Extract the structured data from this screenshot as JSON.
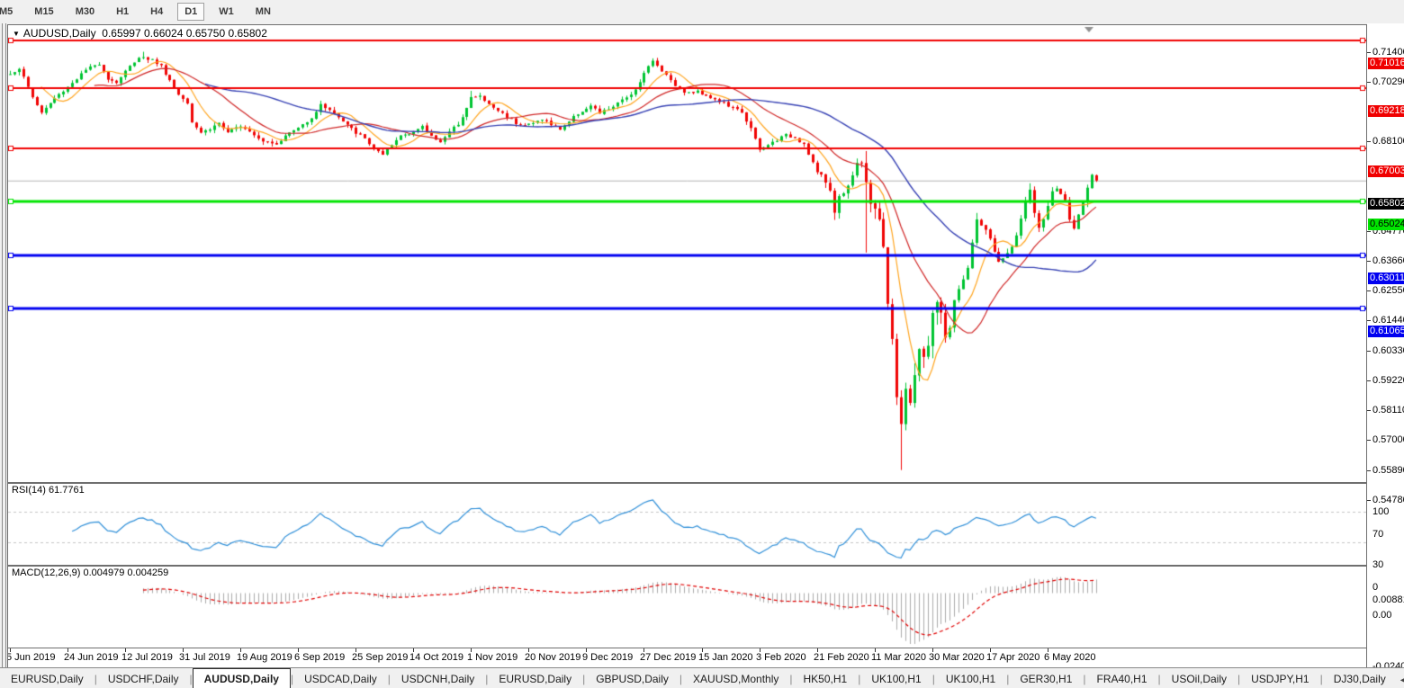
{
  "toolbar": {
    "timeframes": [
      {
        "label": "M5",
        "active": false
      },
      {
        "label": "M15",
        "active": false
      },
      {
        "label": "M30",
        "active": false
      },
      {
        "label": "H1",
        "active": false
      },
      {
        "label": "H4",
        "active": false
      },
      {
        "label": "D1",
        "active": true
      },
      {
        "label": "W1",
        "active": false
      },
      {
        "label": "MN",
        "active": false
      }
    ]
  },
  "header": {
    "dropdown_icon": "▼",
    "symbol": "AUDUSD,Daily",
    "open": "0.65997",
    "high": "0.66024",
    "low": "0.65750",
    "close": "0.65802"
  },
  "rsi_header": "RSI(14) 61.7761",
  "macd_header": "MACD(12,26,9) 0.004979 0.004259",
  "tabs": {
    "items": [
      {
        "label": "EURUSD,Daily",
        "active": false
      },
      {
        "label": "USDCHF,Daily",
        "active": false
      },
      {
        "label": "AUDUSD,Daily",
        "active": true
      },
      {
        "label": "USDCAD,Daily",
        "active": false
      },
      {
        "label": "USDCNH,Daily",
        "active": false
      },
      {
        "label": "EURUSD,Daily",
        "active": false
      },
      {
        "label": "GBPUSD,Daily",
        "active": false
      },
      {
        "label": "XAUUSD,Monthly",
        "active": false
      },
      {
        "label": "HK50,H1",
        "active": false
      },
      {
        "label": "UK100,H1",
        "active": false
      },
      {
        "label": "UK100,H1",
        "active": false
      },
      {
        "label": "GER30,H1",
        "active": false
      },
      {
        "label": "FRA40,H1",
        "active": false
      },
      {
        "label": "USOil,Daily",
        "active": false
      },
      {
        "label": "USDJPY,H1",
        "active": false
      },
      {
        "label": "DJ30,Daily",
        "active": false
      }
    ],
    "scroll_left": "◂",
    "scroll_right": "▸"
  },
  "chart_data": {
    "type": "candlestick",
    "title": "AUDUSD,Daily",
    "price_axis": {
      "min": 0.5478,
      "max": 0.714,
      "pad": 5,
      "ticks": [
        "0.71400",
        "0.70290",
        "0.68100",
        "0.64770",
        "0.63660",
        "0.62550",
        "0.61440",
        "0.60330",
        "0.59220",
        "0.58110",
        "0.57000",
        "0.55890",
        "0.54780"
      ]
    },
    "x_axis": {
      "labels": [
        "5 Jun 2019",
        "24 Jun 2019",
        "12 Jul 2019",
        "31 Jul 2019",
        "19 Aug 2019",
        "6 Sep 2019",
        "25 Sep 2019",
        "14 Oct 2019",
        "1 Nov 2019",
        "20 Nov 2019",
        "9 Dec 2019",
        "27 Dec 2019",
        "15 Jan 2020",
        "3 Feb 2020",
        "21 Feb 2020",
        "11 Mar 2020",
        "30 Mar 2020",
        "17 Apr 2020",
        "6 May 2020"
      ],
      "bars_per_label": 13
    },
    "h_lines": [
      {
        "price": 0.71016,
        "label": "0.71016",
        "color": "#f00000",
        "text_color": "#ffffff",
        "width": 2
      },
      {
        "price": 0.69218,
        "label": "0.69218",
        "color": "#f00000",
        "text_color": "#ffffff",
        "width": 2
      },
      {
        "price": 0.67003,
        "label": "0.67003",
        "color": "#f00000",
        "text_color": "#ffffff",
        "width": 2
      },
      {
        "price": 0.65024,
        "label": "0.65024",
        "color": "#00e400",
        "text_color": "#000000",
        "width": 3
      },
      {
        "price": 0.63011,
        "label": "0.63011",
        "color": "#0000f0",
        "text_color": "#ffffff",
        "width": 3
      },
      {
        "price": 0.61065,
        "label": "0.61065",
        "color": "#0000f0",
        "text_color": "#ffffff",
        "width": 3
      }
    ],
    "bid_line": {
      "price": 0.65802,
      "label": "0.65802",
      "line_color": "#b4b4b4",
      "box_color": "#000000",
      "text_color": "#ffffff"
    },
    "candles": {
      "count": 246,
      "seed": 1337,
      "bar_spacing": 4.925,
      "close_anchors": [
        [
          0,
          0.6975
        ],
        [
          2,
          0.6998
        ],
        [
          5,
          0.689
        ],
        [
          7,
          0.6832
        ],
        [
          10,
          0.6885
        ],
        [
          13,
          0.6928
        ],
        [
          17,
          0.699
        ],
        [
          20,
          0.7015
        ],
        [
          22,
          0.6958
        ],
        [
          24,
          0.6945
        ],
        [
          26,
          0.6985
        ],
        [
          29,
          0.704
        ],
        [
          32,
          0.7028
        ],
        [
          34,
          0.7005
        ],
        [
          36,
          0.6952
        ],
        [
          38,
          0.69
        ],
        [
          40,
          0.6872
        ],
        [
          41,
          0.68
        ],
        [
          43,
          0.676
        ],
        [
          45,
          0.6772
        ],
        [
          47,
          0.6795
        ],
        [
          49,
          0.6755
        ],
        [
          52,
          0.6786
        ],
        [
          54,
          0.6765
        ],
        [
          57,
          0.6728
        ],
        [
          60,
          0.6718
        ],
        [
          63,
          0.6758
        ],
        [
          65,
          0.6775
        ],
        [
          68,
          0.6815
        ],
        [
          70,
          0.686
        ],
        [
          72,
          0.6845
        ],
        [
          75,
          0.6798
        ],
        [
          78,
          0.6758
        ],
        [
          80,
          0.6735
        ],
        [
          82,
          0.67
        ],
        [
          84,
          0.6672
        ],
        [
          86,
          0.671
        ],
        [
          88,
          0.6748
        ],
        [
          91,
          0.6762
        ],
        [
          93,
          0.6778
        ],
        [
          95,
          0.6745
        ],
        [
          97,
          0.6726
        ],
        [
          99,
          0.6758
        ],
        [
          101,
          0.6792
        ],
        [
          103,
          0.685
        ],
        [
          104,
          0.6888
        ],
        [
          106,
          0.6893
        ],
        [
          108,
          0.6862
        ],
        [
          110,
          0.684
        ],
        [
          112,
          0.6818
        ],
        [
          114,
          0.6795
        ],
        [
          116,
          0.6786
        ],
        [
          118,
          0.6792
        ],
        [
          120,
          0.681
        ],
        [
          122,
          0.6786
        ],
        [
          124,
          0.6772
        ],
        [
          126,
          0.68
        ],
        [
          128,
          0.683
        ],
        [
          131,
          0.6856
        ],
        [
          133,
          0.683
        ],
        [
          135,
          0.6846
        ],
        [
          137,
          0.6865
        ],
        [
          139,
          0.689
        ],
        [
          141,
          0.6918
        ],
        [
          143,
          0.6982
        ],
        [
          145,
          0.7023
        ],
        [
          147,
          0.699
        ],
        [
          149,
          0.6955
        ],
        [
          151,
          0.6918
        ],
        [
          153,
          0.6905
        ],
        [
          155,
          0.691
        ],
        [
          157,
          0.6898
        ],
        [
          159,
          0.688
        ],
        [
          161,
          0.6866
        ],
        [
          163,
          0.6848
        ],
        [
          165,
          0.6835
        ],
        [
          167,
          0.6772
        ],
        [
          169,
          0.6692
        ],
        [
          171,
          0.6712
        ],
        [
          173,
          0.6732
        ],
        [
          175,
          0.6748
        ],
        [
          177,
          0.674
        ],
        [
          179,
          0.6716
        ],
        [
          182,
          0.6612
        ],
        [
          184,
          0.6575
        ],
        [
          185,
          0.6542
        ],
        [
          186,
          0.647
        ],
        [
          187,
          0.6515
        ],
        [
          189,
          0.6562
        ],
        [
          191,
          0.6642
        ],
        [
          192,
          0.6655
        ],
        [
          193,
          0.6582
        ],
        [
          194,
          0.6505
        ],
        [
          195,
          0.6482
        ],
        [
          196,
          0.643
        ],
        [
          197,
          0.6318
        ],
        [
          198,
          0.6125
        ],
        [
          199,
          0.6002
        ],
        [
          200,
          0.5782
        ],
        [
          201,
          0.5665
        ],
        [
          202,
          0.5808
        ],
        [
          203,
          0.5742
        ],
        [
          204,
          0.5868
        ],
        [
          205,
          0.5958
        ],
        [
          206,
          0.5918
        ],
        [
          207,
          0.5975
        ],
        [
          208,
          0.6088
        ],
        [
          209,
          0.6128
        ],
        [
          210,
          0.6078
        ],
        [
          211,
          0.6002
        ],
        [
          212,
          0.6038
        ],
        [
          213,
          0.6132
        ],
        [
          214,
          0.617
        ],
        [
          216,
          0.6252
        ],
        [
          217,
          0.6345
        ],
        [
          218,
          0.644
        ],
        [
          220,
          0.6392
        ],
        [
          221,
          0.6365
        ],
        [
          223,
          0.6272
        ],
        [
          225,
          0.6308
        ],
        [
          227,
          0.6375
        ],
        [
          229,
          0.6498
        ],
        [
          230,
          0.6548
        ],
        [
          231,
          0.6462
        ],
        [
          232,
          0.6398
        ],
        [
          233,
          0.6442
        ],
        [
          234,
          0.6482
        ],
        [
          235,
          0.6538
        ],
        [
          236,
          0.6552
        ],
        [
          237,
          0.653
        ],
        [
          238,
          0.6502
        ],
        [
          239,
          0.6442
        ],
        [
          240,
          0.6408
        ],
        [
          241,
          0.6448
        ],
        [
          242,
          0.6492
        ],
        [
          243,
          0.6552
        ],
        [
          244,
          0.6595
        ],
        [
          245,
          0.65802
        ]
      ],
      "noise_zones": [
        {
          "from": 0,
          "to": 181,
          "amp": 0.001,
          "wick": 0.0013
        },
        {
          "from": 182,
          "to": 192,
          "amp": 0.0016,
          "wick": 0.0022
        },
        {
          "from": 193,
          "to": 212,
          "amp": 0.003,
          "wick": 0.0048
        },
        {
          "from": 213,
          "to": 245,
          "amp": 0.0013,
          "wick": 0.0018
        }
      ],
      "specials": {
        "30": {
          "high": 0.7058
        },
        "104": {
          "high": 0.6913
        },
        "186": {
          "low": 0.6434
        },
        "193": {
          "low": 0.6313
        },
        "201": {
          "low": 0.5506
        },
        "218": {
          "high": 0.646
        },
        "230": {
          "high": 0.657
        },
        "236": {
          "high": 0.656
        },
        "244": {
          "high": 0.6605
        },
        "245": {
          "open": 0.65997,
          "high": 0.66024,
          "low": 0.6575,
          "close": 0.65802
        }
      }
    },
    "moving_averages": [
      {
        "period": 8,
        "color": "#ffa520",
        "width": 1.2
      },
      {
        "period": 20,
        "color": "#d02828",
        "width": 1.2
      },
      {
        "period": 45,
        "color": "#3742b4",
        "width": 1.4
      }
    ],
    "rsi": {
      "period": 14,
      "value": "61.7761",
      "levels": [
        {
          "value": 100,
          "label": "100"
        },
        {
          "value": 70,
          "label": "70"
        },
        {
          "value": 30,
          "label": "30"
        },
        {
          "value": 0,
          "label": "0"
        }
      ],
      "dashed_levels": [
        70,
        30
      ],
      "line_color": "#2f8fd8"
    },
    "macd": {
      "fast": 12,
      "slow": 26,
      "signal": 9,
      "values": "0.004979 0.004259",
      "ticks": [
        {
          "pos": "max",
          "label": "0.008815"
        },
        {
          "pos": "zero",
          "label": "0.00"
        },
        {
          "pos": "min",
          "label": "-0.02408"
        }
      ],
      "hist_color": "#ababab",
      "signal_color": "#e00000"
    },
    "colors": {
      "bull": "#00c432",
      "bear": "#f00505",
      "shift_marker": "#909090"
    }
  }
}
